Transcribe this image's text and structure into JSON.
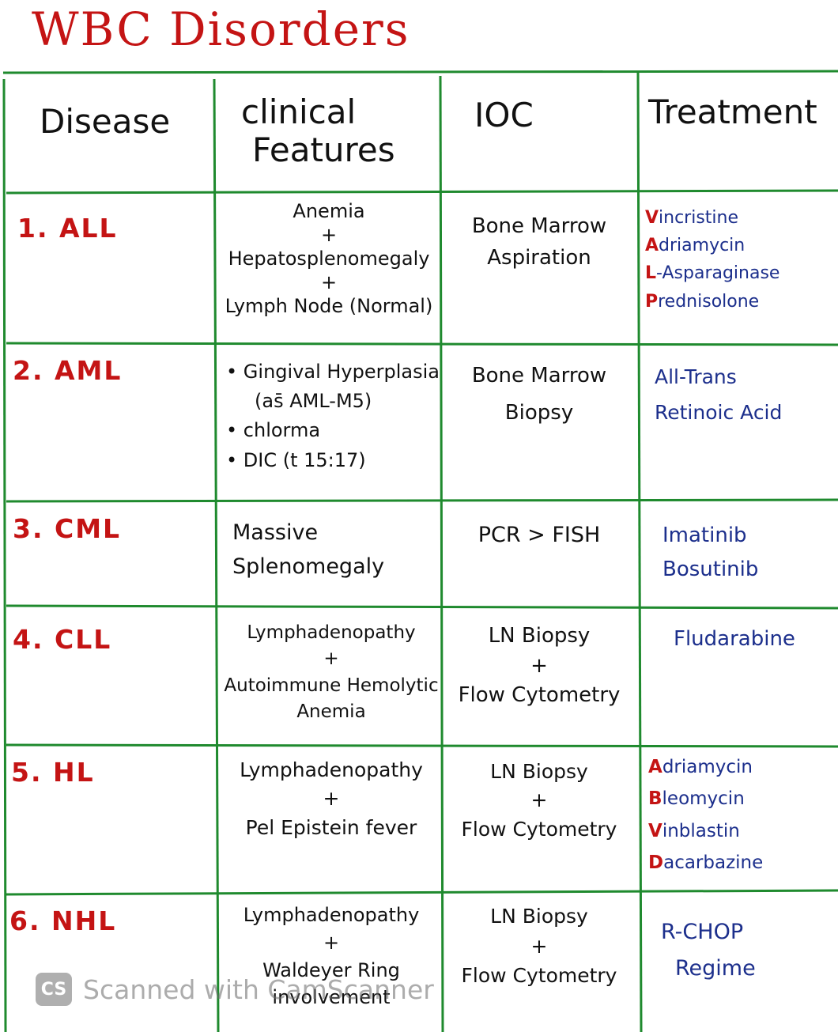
{
  "title": "WBC Disorders",
  "colors": {
    "title": "#c41414",
    "disease": "#c41414",
    "grid": "#1f8a2e",
    "ink": "#111111",
    "treatment_ink": "#1c2f8c",
    "acronym_highlight": "#c41414"
  },
  "headers": {
    "disease": "Disease",
    "clinical_features": [
      "clinical",
      "Features"
    ],
    "ioc": "IOC",
    "treatment": "Treatment"
  },
  "rows": [
    {
      "disease": "1. ALL",
      "features": [
        "Anemia",
        "+",
        "Hepatosplenomegaly",
        "+",
        "Lymph Node (Normal)"
      ],
      "ioc": [
        "Bone Marrow",
        "Aspiration"
      ],
      "treatment": [
        {
          "initial": "V",
          "rest": "incristine"
        },
        {
          "initial": "A",
          "rest": "driamycin"
        },
        {
          "initial": "L",
          "rest": "-Asparaginase"
        },
        {
          "initial": "P",
          "rest": "rednisolone"
        }
      ]
    },
    {
      "disease": "2. AML",
      "features": [
        "Gingival Hyperplasia",
        "(as̄ AML-M5)",
        "chlorma",
        "DIC (t 15:17)"
      ],
      "ioc": [
        "Bone Marrow",
        "Biopsy"
      ],
      "treatment": [
        "All-Trans",
        "Retinoic Acid"
      ]
    },
    {
      "disease": "3. CML",
      "features": [
        "Massive",
        "Splenomegaly"
      ],
      "ioc": [
        "PCR > FISH"
      ],
      "treatment": [
        "Imatinib",
        "Bosutinib"
      ]
    },
    {
      "disease": "4. CLL",
      "features": [
        "Lymphadenopathy",
        "+",
        "Autoimmune Hemolytic",
        "Anemia"
      ],
      "ioc": [
        "LN Biopsy",
        "+",
        "Flow Cytometry"
      ],
      "treatment": [
        "Fludarabine"
      ]
    },
    {
      "disease": "5. HL",
      "features": [
        "Lymphadenopathy",
        "+",
        "Pel Epistein fever"
      ],
      "ioc": [
        "LN Biopsy",
        "+",
        "Flow Cytometry"
      ],
      "treatment": [
        {
          "initial": "A",
          "rest": "driamycin"
        },
        {
          "initial": "B",
          "rest": "leomycin"
        },
        {
          "initial": "V",
          "rest": "inblastin"
        },
        {
          "initial": "D",
          "rest": "acarbazine"
        }
      ]
    },
    {
      "disease": "6. NHL",
      "features": [
        "Lymphadenopathy",
        "+",
        "Waldeyer Ring",
        "involvement"
      ],
      "ioc": [
        "LN Biopsy",
        "+",
        "Flow Cytometry"
      ],
      "treatment": [
        "R-CHOP",
        "Regime"
      ]
    }
  ],
  "watermark": {
    "icon": "CS",
    "text": "Scanned with CamScanner"
  }
}
